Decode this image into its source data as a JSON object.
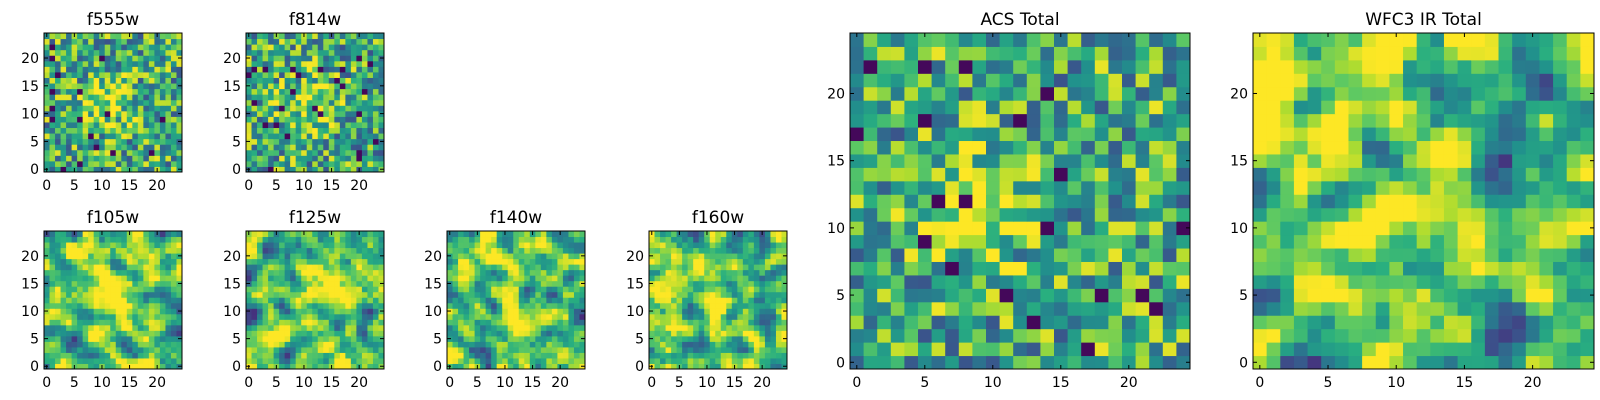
{
  "figure": {
    "layout": "2 rows x 4 small panels (left) + 2 large panels (right)",
    "colormap": "viridis"
  },
  "colors": {
    "viridis": [
      "#440154",
      "#472d7b",
      "#3b528b",
      "#2c728e",
      "#21918c",
      "#28ae80",
      "#5ec962",
      "#addc30",
      "#fde725"
    ],
    "frame": "#000000",
    "background": "#ffffff"
  },
  "chart_data": [
    {
      "type": "heatmap",
      "id": "f555w",
      "title": "f555w",
      "grid_size": 25,
      "xlim": [
        -0.5,
        24.5
      ],
      "ylim": [
        -0.5,
        24.5
      ],
      "x_ticks": [
        0,
        5,
        10,
        15,
        20
      ],
      "y_ticks": [
        0,
        5,
        10,
        15,
        20
      ],
      "x_tick_labels": [
        "0",
        "5",
        "10",
        "15",
        "20"
      ],
      "y_tick_labels": [
        "0",
        "5",
        "10",
        "15",
        "20"
      ],
      "value_range": [
        0,
        1
      ],
      "peak": {
        "x": 11,
        "y": 12
      },
      "noise": "pixel",
      "seed": 555
    },
    {
      "type": "heatmap",
      "id": "f814w",
      "title": "f814w",
      "grid_size": 25,
      "xlim": [
        -0.5,
        24.5
      ],
      "ylim": [
        -0.5,
        24.5
      ],
      "x_ticks": [
        0,
        5,
        10,
        15,
        20
      ],
      "y_ticks": [
        0,
        5,
        10,
        15,
        20
      ],
      "x_tick_labels": [
        "0",
        "5",
        "10",
        "15",
        "20"
      ],
      "y_tick_labels": [
        "0",
        "5",
        "10",
        "15",
        "20"
      ],
      "value_range": [
        0,
        1
      ],
      "peak": {
        "x": 11,
        "y": 12
      },
      "noise": "pixel",
      "seed": 814
    },
    {
      "type": "heatmap",
      "id": "f105w",
      "title": "f105w",
      "grid_size": 25,
      "xlim": [
        -0.5,
        24.5
      ],
      "ylim": [
        -0.5,
        24.5
      ],
      "x_ticks": [
        0,
        5,
        10,
        15,
        20
      ],
      "y_ticks": [
        0,
        5,
        10,
        15,
        20
      ],
      "x_tick_labels": [
        "0",
        "5",
        "10",
        "15",
        "20"
      ],
      "y_tick_labels": [
        "0",
        "5",
        "10",
        "15",
        "20"
      ],
      "value_range": [
        0,
        1
      ],
      "peak": {
        "x": 12,
        "y": 12
      },
      "noise": "smooth",
      "seed": 105
    },
    {
      "type": "heatmap",
      "id": "f125w",
      "title": "f125w",
      "grid_size": 25,
      "xlim": [
        -0.5,
        24.5
      ],
      "ylim": [
        -0.5,
        24.5
      ],
      "x_ticks": [
        0,
        5,
        10,
        15,
        20
      ],
      "y_ticks": [
        0,
        5,
        10,
        15,
        20
      ],
      "x_tick_labels": [
        "0",
        "5",
        "10",
        "15",
        "20"
      ],
      "y_tick_labels": [
        "0",
        "5",
        "10",
        "15",
        "20"
      ],
      "value_range": [
        0,
        1
      ],
      "peak": {
        "x": 12,
        "y": 12
      },
      "noise": "smooth",
      "seed": 125
    },
    {
      "type": "heatmap",
      "id": "f140w",
      "title": "f140w",
      "grid_size": 25,
      "xlim": [
        -0.5,
        24.5
      ],
      "ylim": [
        -0.5,
        24.5
      ],
      "x_ticks": [
        0,
        5,
        10,
        15,
        20
      ],
      "y_ticks": [
        0,
        5,
        10,
        15,
        20
      ],
      "x_tick_labels": [
        "0",
        "5",
        "10",
        "15",
        "20"
      ],
      "y_tick_labels": [
        "0",
        "5",
        "10",
        "15",
        "20"
      ],
      "value_range": [
        0,
        1
      ],
      "peak": {
        "x": 12,
        "y": 12
      },
      "noise": "smooth",
      "seed": 140
    },
    {
      "type": "heatmap",
      "id": "f160w",
      "title": "f160w",
      "grid_size": 25,
      "xlim": [
        -0.5,
        24.5
      ],
      "ylim": [
        -0.5,
        24.5
      ],
      "x_ticks": [
        0,
        5,
        10,
        15,
        20
      ],
      "y_ticks": [
        0,
        5,
        10,
        15,
        20
      ],
      "x_tick_labels": [
        "0",
        "5",
        "10",
        "15",
        "20"
      ],
      "y_tick_labels": [
        "0",
        "5",
        "10",
        "15",
        "20"
      ],
      "value_range": [
        0,
        1
      ],
      "peak": {
        "x": 12,
        "y": 11
      },
      "noise": "smooth",
      "seed": 160
    },
    {
      "type": "heatmap",
      "id": "acs-total",
      "title": "ACS Total",
      "grid_size": 25,
      "xlim": [
        -0.5,
        24.5
      ],
      "ylim": [
        -0.5,
        24.5
      ],
      "x_ticks": [
        0,
        5,
        10,
        15,
        20
      ],
      "y_ticks": [
        0,
        5,
        10,
        15,
        20
      ],
      "x_tick_labels": [
        "0",
        "5",
        "10",
        "15",
        "20"
      ],
      "y_tick_labels": [
        "0",
        "5",
        "10",
        "15",
        "20"
      ],
      "value_range": [
        0,
        1
      ],
      "peak": {
        "x": 9,
        "y": 12
      },
      "noise": "pixel",
      "seed": 2001
    },
    {
      "type": "heatmap",
      "id": "wfc3-ir-total",
      "title": "WFC3 IR Total",
      "grid_size": 25,
      "xlim": [
        -0.5,
        24.5
      ],
      "ylim": [
        -0.5,
        24.5
      ],
      "x_ticks": [
        0,
        5,
        10,
        15,
        20
      ],
      "y_ticks": [
        0,
        5,
        10,
        15,
        20
      ],
      "x_tick_labels": [
        "0",
        "5",
        "10",
        "15",
        "20"
      ],
      "y_tick_labels": [
        "0",
        "5",
        "10",
        "15",
        "20"
      ],
      "value_range": [
        0,
        1
      ],
      "peak": {
        "x": 12,
        "y": 13
      },
      "noise": "smooth",
      "seed": 3001
    }
  ]
}
